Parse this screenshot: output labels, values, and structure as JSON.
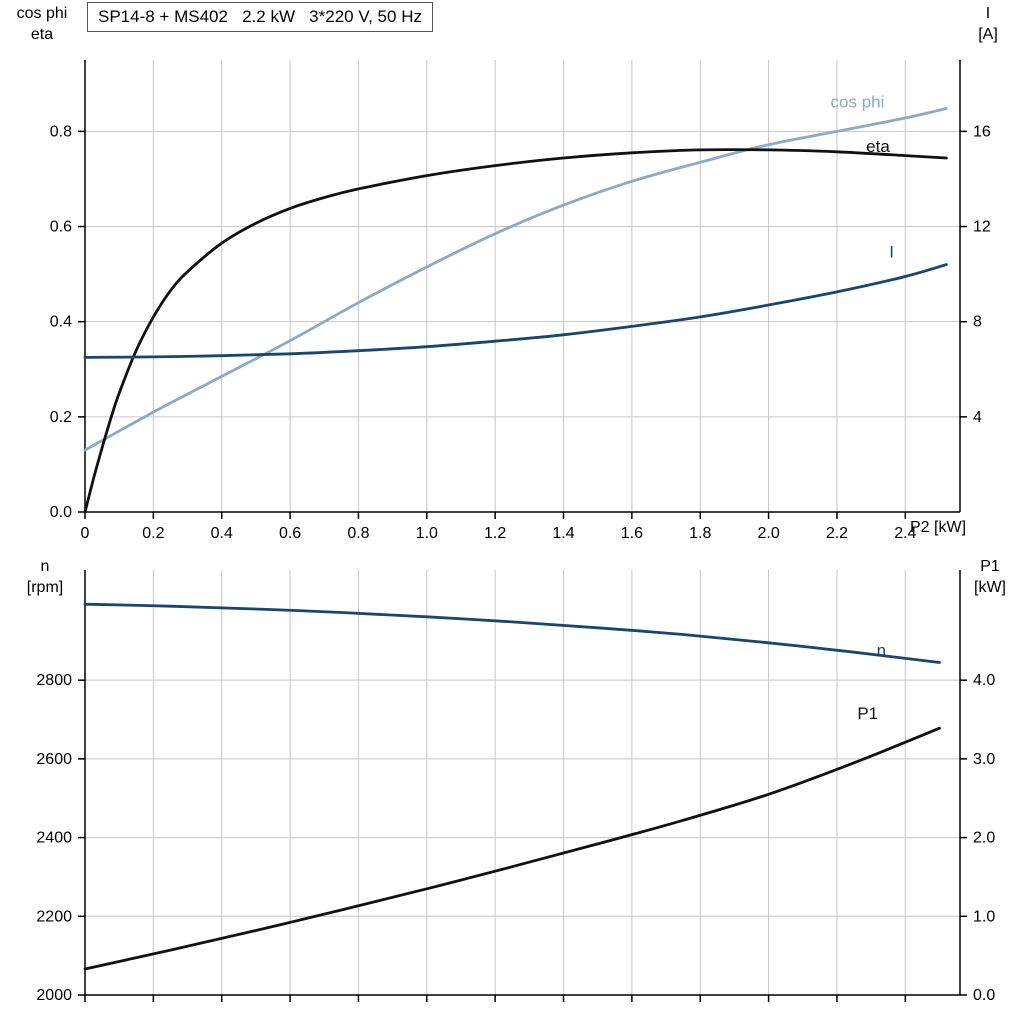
{
  "title": "SP14-8 + MS402   2.2 kW   3*220 V, 50 Hz",
  "axis_corner_labels": {
    "top_chart_left_1": "cos phi",
    "top_chart_left_2": "eta",
    "top_chart_right_1": "I",
    "top_chart_right_2": "[A]",
    "x_axis_label": "P2 [kW]",
    "bottom_chart_left_1": "n",
    "bottom_chart_left_2": "[rpm]",
    "bottom_chart_right_1": "P1",
    "bottom_chart_right_2": "[kW]"
  },
  "colors": {
    "background": "#ffffff",
    "grid": "#c6c6c6",
    "axis": "#000000",
    "cos_phi": "#8ca9c6",
    "eta": "#111111",
    "current": "#17466f",
    "speed": "#17466f",
    "p1": "#111111"
  },
  "chart_data": [
    {
      "type": "line",
      "title": "SP14-8 + MS402   2.2 kW   3*220 V, 50 Hz",
      "xlabel": "P2 [kW]",
      "ylabel_left": "cos phi / eta",
      "ylabel_right": "I [A]",
      "xlim": [
        0,
        2.56
      ],
      "ylim_left": [
        0,
        0.95
      ],
      "ylim_right": [
        0,
        19
      ],
      "grid": true,
      "x_tick_labels_visible": true,
      "xticks": {
        "values": [
          0,
          0.2,
          0.4,
          0.6,
          0.8,
          1.0,
          1.2,
          1.4,
          1.6,
          1.8,
          2.0,
          2.2,
          2.4
        ],
        "labels": [
          "0",
          "0.2",
          "0.4",
          "0.6",
          "0.8",
          "1.0",
          "1.2",
          "1.4",
          "1.6",
          "1.8",
          "2.0",
          "2.2",
          "2.4"
        ]
      },
      "yticks_left": {
        "values": [
          0,
          0.2,
          0.4,
          0.6,
          0.8
        ],
        "labels": [
          "0.0",
          "0.2",
          "0.4",
          "0.6",
          "0.8"
        ]
      },
      "yticks_right": {
        "values": [
          4,
          8,
          12,
          16
        ],
        "labels": [
          "4",
          "8",
          "12",
          "16"
        ]
      },
      "series": [
        {
          "name": "cos phi",
          "axis": "left",
          "color": "#8ca9c6",
          "label_x": 2.26,
          "label_y": 0.85,
          "x": [
            0,
            0.2,
            0.4,
            0.6,
            0.8,
            1.0,
            1.2,
            1.4,
            1.6,
            1.8,
            2.0,
            2.2,
            2.4,
            2.52
          ],
          "y": [
            0.13,
            0.21,
            0.285,
            0.36,
            0.44,
            0.515,
            0.585,
            0.645,
            0.695,
            0.735,
            0.772,
            0.8,
            0.828,
            0.848
          ]
        },
        {
          "name": "eta",
          "axis": "left",
          "color": "#111111",
          "label_x": 2.32,
          "label_y": 0.757,
          "x": [
            0,
            0.025,
            0.05,
            0.075,
            0.1,
            0.15,
            0.2,
            0.25,
            0.3,
            0.4,
            0.5,
            0.6,
            0.7,
            0.8,
            1.0,
            1.2,
            1.4,
            1.6,
            1.8,
            2.0,
            2.2,
            2.4,
            2.52
          ],
          "y": [
            0,
            0.07,
            0.135,
            0.195,
            0.25,
            0.34,
            0.41,
            0.465,
            0.505,
            0.565,
            0.607,
            0.638,
            0.661,
            0.679,
            0.707,
            0.728,
            0.744,
            0.755,
            0.761,
            0.761,
            0.757,
            0.749,
            0.744
          ]
        },
        {
          "name": "I",
          "axis": "right",
          "color": "#17466f",
          "label_x": 2.36,
          "label_y": 10.7,
          "x": [
            0,
            0.2,
            0.4,
            0.6,
            0.8,
            1.0,
            1.2,
            1.4,
            1.6,
            1.8,
            2.0,
            2.2,
            2.4,
            2.52
          ],
          "y": [
            6.5,
            6.52,
            6.57,
            6.65,
            6.78,
            6.95,
            7.18,
            7.45,
            7.8,
            8.2,
            8.7,
            9.25,
            9.9,
            10.4
          ]
        }
      ]
    },
    {
      "type": "line",
      "title": "",
      "xlabel": "",
      "ylabel_left": "n [rpm]",
      "ylabel_right": "P1 [kW]",
      "xlim": [
        0,
        2.56
      ],
      "ylim_left": [
        2000,
        3080
      ],
      "ylim_right": [
        0,
        5.4
      ],
      "grid": true,
      "x_tick_labels_visible": false,
      "xticks": {
        "values": [
          0,
          0.2,
          0.4,
          0.6,
          0.8,
          1.0,
          1.2,
          1.4,
          1.6,
          1.8,
          2.0,
          2.2,
          2.4
        ],
        "labels": []
      },
      "yticks_left": {
        "values": [
          2000,
          2200,
          2400,
          2600,
          2800
        ],
        "labels": [
          "2000",
          "2200",
          "2400",
          "2600",
          "2800"
        ]
      },
      "yticks_right": {
        "values": [
          0,
          1,
          2,
          3,
          4
        ],
        "labels": [
          "0.0",
          "1.0",
          "2.0",
          "3.0",
          "4.0"
        ]
      },
      "series": [
        {
          "name": "n",
          "axis": "left",
          "color": "#17466f",
          "label_x": 2.33,
          "label_y": 2862,
          "x": [
            0,
            0.25,
            0.5,
            0.75,
            1.0,
            1.25,
            1.5,
            1.75,
            2.0,
            2.25,
            2.5
          ],
          "y": [
            2993,
            2988,
            2981,
            2972,
            2961,
            2948,
            2933,
            2916,
            2895,
            2871,
            2845
          ]
        },
        {
          "name": "P1",
          "axis": "right",
          "color": "#111111",
          "label_x": 2.29,
          "label_y": 3.51,
          "x": [
            0,
            0.25,
            0.5,
            0.75,
            1.0,
            1.25,
            1.5,
            1.75,
            2.0,
            2.25,
            2.5
          ],
          "y": [
            0.33,
            0.57,
            0.82,
            1.08,
            1.35,
            1.63,
            1.92,
            2.22,
            2.55,
            2.95,
            3.39
          ]
        }
      ]
    }
  ]
}
